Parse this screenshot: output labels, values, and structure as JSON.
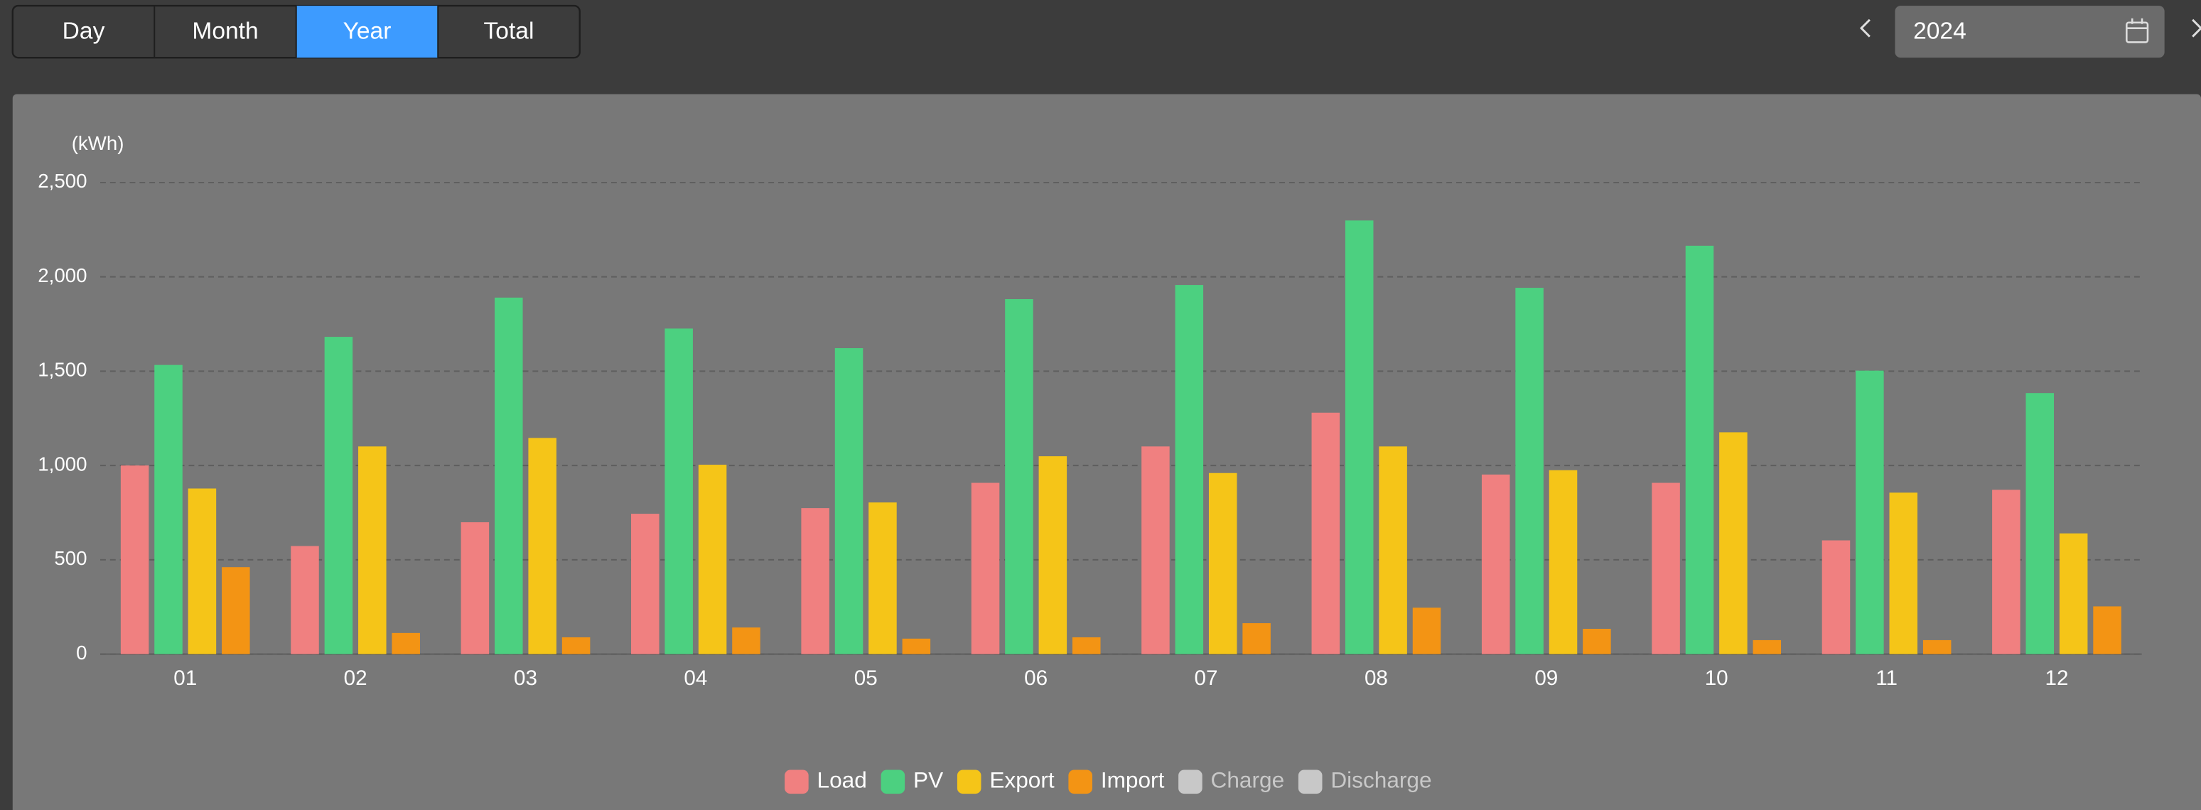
{
  "controls": {
    "tabs": [
      "Day",
      "Month",
      "Year",
      "Total"
    ],
    "active_tab": 2,
    "date": "2024"
  },
  "chart_data": {
    "type": "bar",
    "y_label": "(kWh)",
    "categories": [
      "01",
      "02",
      "03",
      "04",
      "05",
      "06",
      "07",
      "08",
      "09",
      "10",
      "11",
      "12"
    ],
    "series": [
      {
        "name": "Load",
        "color": "#f08080",
        "values": [
          1000,
          573,
          699,
          744,
          774,
          908,
          1101,
          1280,
          952,
          908,
          603,
          871
        ]
      },
      {
        "name": "PV",
        "color": "#4cd080",
        "values": [
          1533,
          1682,
          1890,
          1726,
          1622,
          1882,
          1957,
          2299,
          1942,
          2165,
          1503,
          1384
        ]
      },
      {
        "name": "Export",
        "color": "#f5c518",
        "values": [
          878,
          1101,
          1146,
          1004,
          804,
          1049,
          960,
          1101,
          975,
          1176,
          856,
          640
        ]
      },
      {
        "name": "Import",
        "color": "#f39414",
        "values": [
          461,
          112,
          89,
          141,
          82,
          89,
          164,
          246,
          134,
          74,
          74,
          253
        ]
      },
      {
        "name": "Charge",
        "color": "#c8c8c8",
        "disabled": true,
        "values": [
          null,
          null,
          null,
          null,
          null,
          null,
          null,
          null,
          null,
          null,
          null,
          null
        ]
      },
      {
        "name": "Discharge",
        "color": "#c8c8c8",
        "disabled": true,
        "values": [
          null,
          null,
          null,
          null,
          null,
          null,
          null,
          null,
          null,
          null,
          null,
          null
        ]
      }
    ],
    "ylim": [
      0,
      2500
    ],
    "yticks": [
      0,
      500,
      {
        "value": 1000,
        "label": "1,000"
      },
      {
        "value": 1500,
        "label": "1,500"
      },
      {
        "value": 2000,
        "label": "2,000"
      },
      {
        "value": 2500,
        "label": "2,500"
      }
    ],
    "grid": true
  }
}
